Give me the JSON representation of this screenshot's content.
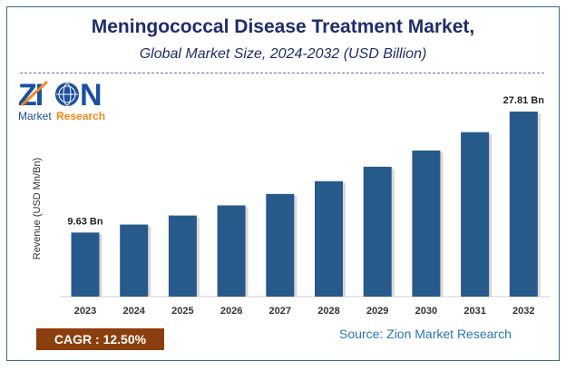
{
  "chart_data": {
    "type": "bar",
    "title": "Meningococcal Disease Treatment Market,",
    "subtitle": "Global Market Size, 2024-2032 (USD Billion)",
    "xlabel": "",
    "ylabel": "Revenue (USD Mn/Bn)",
    "categories": [
      "2023",
      "2024",
      "2025",
      "2026",
      "2027",
      "2028",
      "2029",
      "2030",
      "2031",
      "2032"
    ],
    "values": [
      9.63,
      10.83,
      12.19,
      13.71,
      15.43,
      17.35,
      19.52,
      21.96,
      24.71,
      27.81
    ],
    "data_labels": {
      "0": "9.63 Bn",
      "9": "27.81 Bn"
    },
    "ylim": [
      0,
      30
    ],
    "grid": false,
    "bar_color": "#27598a"
  },
  "logo": {
    "line1": "ZION",
    "line2a": "Market",
    "line2b": "Research"
  },
  "cagr": "CAGR :  12.50%",
  "source": "Source: Zion Market Research"
}
